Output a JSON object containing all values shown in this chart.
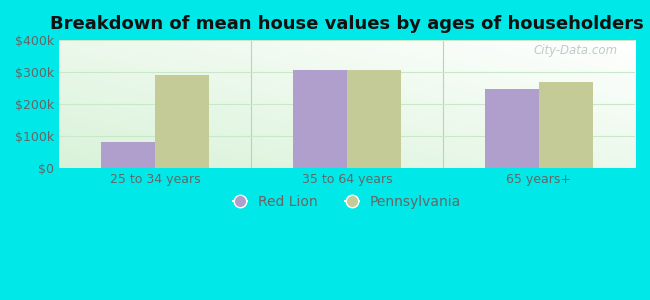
{
  "title": "Breakdown of mean house values by ages of householders",
  "categories": [
    "25 to 34 years",
    "35 to 64 years",
    "65 years+"
  ],
  "red_lion_values": [
    80000,
    305000,
    248000
  ],
  "pennsylvania_values": [
    292000,
    305000,
    268000
  ],
  "red_lion_color": "#b09fcc",
  "pennsylvania_color": "#c5cb96",
  "background_color": "#00e8e8",
  "plot_bg_top": "#f0f8f0",
  "plot_bg_bottom": "#d8f0d8",
  "grid_color": "#c8e8c8",
  "ylim": [
    0,
    400000
  ],
  "yticks": [
    0,
    100000,
    200000,
    300000,
    400000
  ],
  "ytick_labels": [
    "$0",
    "$100k",
    "$200k",
    "$300k",
    "$400k"
  ],
  "legend_labels": [
    "Red Lion",
    "Pennsylvania"
  ],
  "bar_width": 0.28,
  "title_fontsize": 13,
  "tick_fontsize": 9,
  "legend_fontsize": 10,
  "watermark_text": "City-Data.com",
  "separator_color": "#aaddaa",
  "tick_color": "#666666"
}
